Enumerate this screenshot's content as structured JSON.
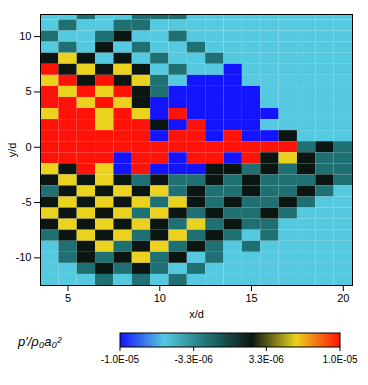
{
  "chart_data": {
    "type": "heatmap",
    "x_label": "x/d",
    "y_label": "y/d",
    "xlim": [
      3.5,
      20.5
    ],
    "ylim": [
      -12.5,
      12
    ],
    "xticks": [
      5,
      10,
      15,
      20
    ],
    "yticks": [
      -10,
      -5,
      0,
      5,
      10
    ],
    "heatmap": {
      "x": [
        4,
        5,
        6,
        7,
        8,
        9,
        10,
        11,
        12,
        13,
        14,
        15,
        16,
        17,
        18,
        19,
        20
      ],
      "y": [
        12,
        11,
        10,
        9,
        8,
        7,
        6,
        5,
        4,
        3,
        2,
        1,
        0,
        -1,
        -2,
        -3,
        -4,
        -5,
        -6,
        -7,
        -8,
        -9,
        -10,
        -11,
        -12
      ],
      "z": [
        [
          -6e-06,
          -6e-06,
          -2e-06,
          -6e-06,
          -6e-06,
          -2e-06,
          -2e-06,
          -2e-06,
          -6e-06,
          -6e-06,
          -6e-06,
          -6e-06,
          -6e-06,
          -6e-06,
          -6e-06,
          -6e-06,
          -6e-06
        ],
        [
          -6e-06,
          -2e-06,
          -6e-06,
          -6e-06,
          -2e-06,
          -2e-06,
          -6e-06,
          -6e-06,
          -6e-06,
          -6e-06,
          -6e-06,
          -6e-06,
          -6e-06,
          -6e-06,
          -6e-06,
          -6e-06,
          -6e-06
        ],
        [
          -2e-06,
          -6e-06,
          -6e-06,
          -2e-06,
          2e-06,
          -6e-06,
          -6e-06,
          -2e-06,
          -6e-06,
          -6e-06,
          -6e-06,
          -6e-06,
          -6e-06,
          -6e-06,
          -6e-06,
          -6e-06,
          -6e-06
        ],
        [
          -6e-06,
          -2e-06,
          -6e-06,
          2e-06,
          -6e-06,
          -2e-06,
          -6e-06,
          -6e-06,
          -2e-06,
          -6e-06,
          -6e-06,
          -6e-06,
          -6e-06,
          -6e-06,
          -6e-06,
          -6e-06,
          -6e-06
        ],
        [
          2e-06,
          6e-06,
          2e-06,
          -6e-06,
          2e-06,
          -6e-06,
          -2e-06,
          -6e-06,
          -6e-06,
          -2e-06,
          -6e-06,
          -6e-06,
          -6e-06,
          -6e-06,
          -6e-06,
          -6e-06,
          -6e-06
        ],
        [
          1e-05,
          2e-06,
          6e-06,
          2e-06,
          6e-06,
          2e-06,
          -6e-06,
          -2e-06,
          -6e-06,
          -6e-06,
          -1e-05,
          -6e-06,
          -6e-06,
          -6e-06,
          -6e-06,
          -6e-06,
          -6e-06
        ],
        [
          6e-06,
          1e-05,
          2e-06,
          1e-05,
          2e-06,
          6e-06,
          -2e-06,
          -6e-06,
          -1e-05,
          -1e-05,
          -1e-05,
          -6e-06,
          -6e-06,
          -6e-06,
          -6e-06,
          -6e-06,
          -6e-06
        ],
        [
          1e-05,
          6e-06,
          1e-05,
          6e-06,
          1e-05,
          2e-06,
          -2e-06,
          -1e-05,
          -1e-05,
          -1e-05,
          -1e-05,
          -1e-05,
          -6e-06,
          -6e-06,
          -6e-06,
          -6e-06,
          -6e-06
        ],
        [
          1e-05,
          1e-05,
          6e-06,
          1e-05,
          6e-06,
          2e-06,
          -1e-05,
          -1e-05,
          -1e-05,
          -1e-05,
          -1e-05,
          -1e-05,
          -6e-06,
          -6e-06,
          -6e-06,
          -6e-06,
          -6e-06
        ],
        [
          6e-06,
          1e-05,
          1e-05,
          6e-06,
          1e-05,
          6e-06,
          -1e-05,
          1e-05,
          -1e-05,
          -1e-05,
          -1e-05,
          -1e-05,
          -1e-05,
          -6e-06,
          -6e-06,
          -6e-06,
          -6e-06
        ],
        [
          1e-05,
          1e-05,
          1e-05,
          6e-06,
          1e-05,
          1e-05,
          2e-06,
          -1e-05,
          1e-05,
          -1e-05,
          -1e-05,
          -1e-05,
          -6e-06,
          -6e-06,
          -6e-06,
          -6e-06,
          -6e-06
        ],
        [
          1e-05,
          1e-05,
          1e-05,
          1e-05,
          1e-05,
          1e-05,
          -1e-05,
          1e-05,
          1e-05,
          -1e-05,
          1e-05,
          -1e-05,
          -1e-05,
          2e-06,
          -6e-06,
          -6e-06,
          -6e-06
        ],
        [
          1e-05,
          1e-05,
          1e-05,
          1e-05,
          1e-05,
          1e-05,
          1e-05,
          1e-05,
          1e-05,
          1e-05,
          1e-05,
          1e-05,
          1e-05,
          1e-05,
          -2e-06,
          2e-06,
          -2e-06
        ],
        [
          1e-05,
          1e-05,
          1e-05,
          1e-05,
          -1e-05,
          1e-05,
          1e-05,
          -1e-05,
          1e-05,
          1e-05,
          -1e-05,
          1e-05,
          2e-06,
          6e-06,
          2e-06,
          -2e-06,
          -2e-06
        ],
        [
          6e-06,
          2e-06,
          1e-05,
          6e-06,
          -1e-05,
          1e-05,
          -1e-05,
          -1e-05,
          -1e-05,
          2e-06,
          2e-06,
          -2e-06,
          2e-06,
          -2e-06,
          2e-06,
          -2e-06,
          -2e-06
        ],
        [
          2e-06,
          6e-06,
          2e-06,
          6e-06,
          2e-06,
          -2e-06,
          2e-06,
          -2e-06,
          -2e-06,
          2e-06,
          -2e-06,
          2e-06,
          -2e-06,
          -2e-06,
          -2e-06,
          2e-06,
          -2e-06
        ],
        [
          -2e-06,
          2e-06,
          6e-06,
          2e-06,
          6e-06,
          2e-06,
          6e-06,
          -2e-06,
          2e-06,
          -2e-06,
          -2e-06,
          2e-06,
          -2e-06,
          -2e-06,
          2e-06,
          -2e-06,
          -6e-06
        ],
        [
          2e-06,
          6e-06,
          2e-06,
          6e-06,
          2e-06,
          6e-06,
          -2e-06,
          6e-06,
          2e-06,
          -2e-06,
          2e-06,
          -2e-06,
          -2e-06,
          2e-06,
          -2e-06,
          -6e-06,
          -6e-06
        ],
        [
          6e-06,
          2e-06,
          6e-06,
          2e-06,
          6e-06,
          -2e-06,
          6e-06,
          2e-06,
          -2e-06,
          2e-06,
          -2e-06,
          -2e-06,
          2e-06,
          -2e-06,
          -6e-06,
          -6e-06,
          -6e-06
        ],
        [
          2e-06,
          6e-06,
          2e-06,
          6e-06,
          2e-06,
          6e-06,
          2e-06,
          -2e-06,
          6e-06,
          -2e-06,
          2e-06,
          -2e-06,
          -2e-06,
          -6e-06,
          -6e-06,
          -6e-06,
          -6e-06
        ],
        [
          -2e-06,
          2e-06,
          6e-06,
          2e-06,
          6e-06,
          -2e-06,
          2e-06,
          6e-06,
          -2e-06,
          2e-06,
          -2e-06,
          -6e-06,
          -2e-06,
          -6e-06,
          -6e-06,
          -6e-06,
          -6e-06
        ],
        [
          -6e-06,
          -2e-06,
          2e-06,
          6e-06,
          -2e-06,
          2e-06,
          6e-06,
          -2e-06,
          2e-06,
          -2e-06,
          -6e-06,
          -2e-06,
          -6e-06,
          -6e-06,
          -6e-06,
          -6e-06,
          -6e-06
        ],
        [
          -6e-06,
          -2e-06,
          2e-06,
          -2e-06,
          2e-06,
          6e-06,
          -2e-06,
          2e-06,
          -6e-06,
          -2e-06,
          -6e-06,
          -6e-06,
          -6e-06,
          -6e-06,
          -6e-06,
          -6e-06,
          -6e-06
        ],
        [
          -6e-06,
          -6e-06,
          -2e-06,
          2e-06,
          -2e-06,
          2e-06,
          -2e-06,
          -6e-06,
          -2e-06,
          -6e-06,
          -6e-06,
          -6e-06,
          -6e-06,
          -6e-06,
          -6e-06,
          -6e-06,
          -6e-06
        ],
        [
          -6e-06,
          -6e-06,
          -6e-06,
          -2e-06,
          -6e-06,
          -2e-06,
          -6e-06,
          -2e-06,
          -6e-06,
          -6e-06,
          -6e-06,
          -6e-06,
          -6e-06,
          -6e-06,
          -6e-06,
          -6e-06,
          -6e-06
        ]
      ]
    },
    "colorbar": {
      "title": "p′/ρ₀a₀²",
      "range": [
        -1e-05,
        1e-05
      ],
      "ticks": [
        {
          "value": 1e-05,
          "label": "1.0E-05"
        },
        {
          "value": 3.3e-06,
          "label": "3.3E-06"
        },
        {
          "value": -3.3e-06,
          "label": "-3.3E-06"
        },
        {
          "value": -1e-05,
          "label": "-1.0E-05"
        }
      ]
    }
  }
}
